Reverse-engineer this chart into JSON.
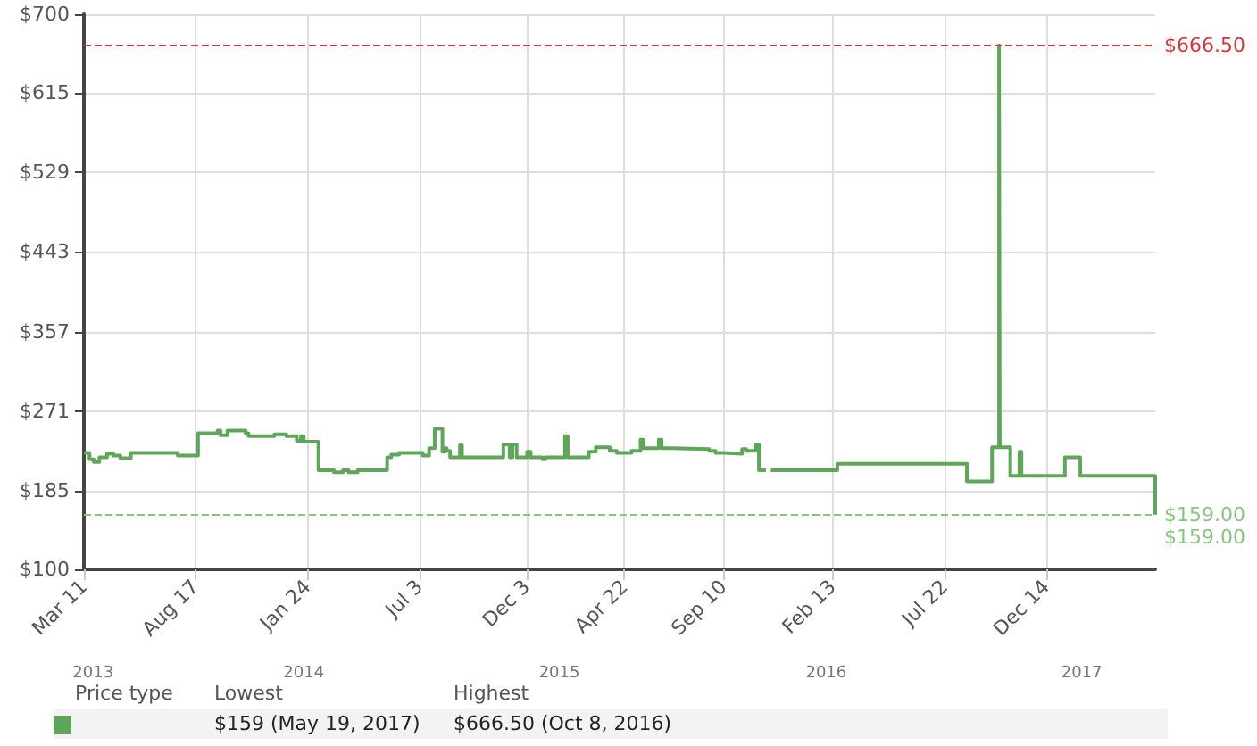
{
  "chart_data": {
    "type": "step",
    "x": [
      "2013-03-11",
      "2013-03-19",
      "2013-03-25",
      "2013-04-02",
      "2013-04-13",
      "2013-04-22",
      "2013-05-02",
      "2013-05-17",
      "2013-07-23",
      "2013-08-21",
      "2013-09-18",
      "2013-09-22",
      "2013-10-02",
      "2013-10-28",
      "2013-11-01",
      "2013-12-08",
      "2013-12-25",
      "2014-01-09",
      "2014-01-15",
      "2014-01-19",
      "2014-02-09",
      "2014-03-03",
      "2014-03-16",
      "2014-03-24",
      "2014-04-06",
      "2014-05-18",
      "2014-05-24",
      "2014-06-04",
      "2014-07-08",
      "2014-07-17",
      "2014-07-25",
      "2014-08-05",
      "2014-08-09",
      "2014-08-11",
      "2014-08-16",
      "2014-08-30",
      "2014-09-02",
      "2014-10-31",
      "2014-11-09",
      "2014-11-13",
      "2014-11-19",
      "2014-12-04",
      "2014-12-09",
      "2014-12-26",
      "2014-12-30",
      "2015-01-27",
      "2015-01-31",
      "2015-03-02",
      "2015-03-12",
      "2015-04-01",
      "2015-04-11",
      "2015-05-02",
      "2015-05-15",
      "2015-05-19",
      "2015-06-10",
      "2015-06-14",
      "2015-07-01",
      "2015-08-21",
      "2015-08-30",
      "2015-09-11",
      "2015-10-07",
      "2015-10-13",
      "2015-10-27",
      "2015-10-31",
      "2015-11-10",
      "2015-11-17",
      "2016-02-20",
      "2016-08-23",
      "2016-09-28",
      "2016-10-08",
      "2016-10-09",
      "2016-10-24",
      "2016-11-06",
      "2016-11-09",
      "2017-01-10",
      "2017-02-01",
      "2017-05-19"
    ],
    "series": [
      {
        "color": "#5fa55a",
        "values": [
          226,
          219,
          216,
          221,
          225,
          223,
          220,
          226,
          223,
          247,
          250,
          245,
          250,
          247,
          244,
          246,
          244,
          239,
          244,
          238,
          207,
          205,
          207,
          205,
          207,
          221,
          224,
          226,
          223,
          231,
          252,
          227,
          231,
          228,
          221,
          234,
          221,
          235,
          221,
          235,
          221,
          227,
          221,
          219,
          221,
          244,
          221,
          227,
          232,
          228,
          226,
          228,
          240,
          231,
          240,
          231,
          230,
          228,
          226,
          225,
          230,
          228,
          235,
          207,
          null,
          207,
          214,
          195,
          232,
          666.5,
          232,
          201,
          227,
          201,
          221,
          201,
          159
        ]
      }
    ],
    "xlim": [
      "2013-03-11",
      "2017-05-19"
    ],
    "xticks": [
      {
        "value": "2013-03-11",
        "label": "Mar 11"
      },
      {
        "value": "2013-08-17",
        "label": "Aug 17"
      },
      {
        "value": "2014-01-24",
        "label": "Jan 24"
      },
      {
        "value": "2014-07-03",
        "label": "Jul 3"
      },
      {
        "value": "2014-12-03",
        "label": "Dec 3"
      },
      {
        "value": "2015-04-22",
        "label": "Apr 22"
      },
      {
        "value": "2015-09-10",
        "label": "Sep 10"
      },
      {
        "value": "2016-02-13",
        "label": "Feb 13"
      },
      {
        "value": "2016-07-22",
        "label": "Jul 22"
      },
      {
        "value": "2016-12-14",
        "label": "Dec 14"
      }
    ],
    "x2lim": [
      "2013-03-11",
      "2017-05-19"
    ],
    "x2ticks": [
      {
        "value": "2013-03-24",
        "label": "2013"
      },
      {
        "value": "2014-01-19",
        "label": "2014"
      },
      {
        "value": "2015-01-19",
        "label": "2015"
      },
      {
        "value": "2016-02-04",
        "label": "2016"
      },
      {
        "value": "2017-02-03",
        "label": "2017"
      }
    ],
    "ylim": [
      100,
      700
    ],
    "yticks": [
      {
        "value": 100,
        "label": "$100"
      },
      {
        "value": 185,
        "label": "$185"
      },
      {
        "value": 271,
        "label": "$271"
      },
      {
        "value": 357,
        "label": "$357"
      },
      {
        "value": 443,
        "label": "$443"
      },
      {
        "value": 529,
        "label": "$529"
      },
      {
        "value": 615,
        "label": "$615"
      },
      {
        "value": 700,
        "label": "$700"
      }
    ],
    "grid": true,
    "marker": "none",
    "line_style": "solid",
    "ref_lines": [
      {
        "axis": "y",
        "value": 666.5,
        "label": "$666.50",
        "color": "#d0393e",
        "line_style": "dashed"
      },
      {
        "axis": "y",
        "value": 159,
        "label": "$159.00",
        "color": "#8ac47f",
        "line_style": "dashed"
      }
    ],
    "annotations": [
      {
        "text": "$159.00",
        "x": "2017-05-19",
        "y": 159
      },
      "Price type",
      "Lowest",
      "Highest",
      "$159 (May 19, 2017)",
      "$666.50 (Oct 8, 2016)"
    ]
  }
}
